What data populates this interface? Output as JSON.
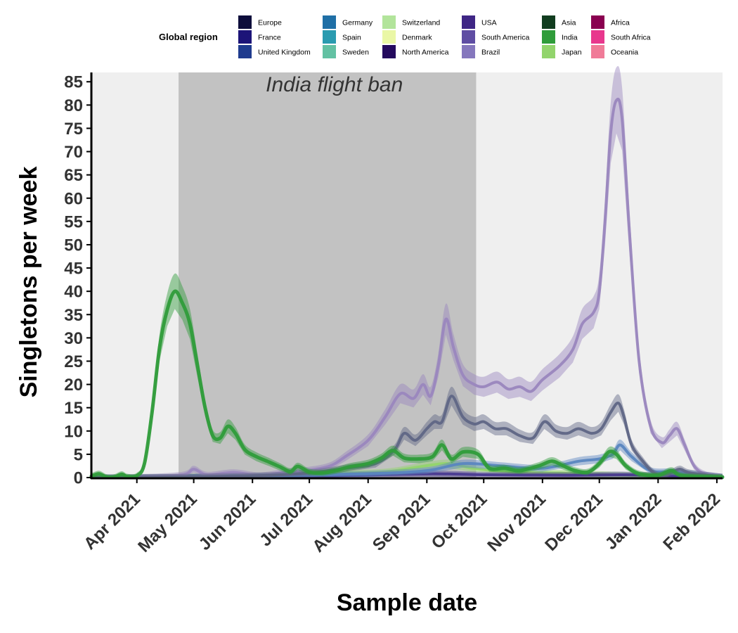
{
  "chart_data": {
    "type": "line",
    "xlabel": "Sample date",
    "ylabel": "Singletons per week",
    "xlim": [
      "2021-03-08",
      "2022-02-04"
    ],
    "ylim": [
      0,
      87
    ],
    "x_ticks": [
      {
        "date": "2021-04-01",
        "label": "Apr 2021"
      },
      {
        "date": "2021-05-01",
        "label": "May 2021"
      },
      {
        "date": "2021-06-01",
        "label": "Jun 2021"
      },
      {
        "date": "2021-07-01",
        "label": "Jul 2021"
      },
      {
        "date": "2021-08-01",
        "label": "Aug 2021"
      },
      {
        "date": "2021-09-01",
        "label": "Sep 2021"
      },
      {
        "date": "2021-10-01",
        "label": "Oct 2021"
      },
      {
        "date": "2021-11-01",
        "label": "Nov 2021"
      },
      {
        "date": "2021-12-01",
        "label": "Dec 2021"
      },
      {
        "date": "2022-01-01",
        "label": "Jan 2022"
      },
      {
        "date": "2022-02-01",
        "label": "Feb 2022"
      }
    ],
    "y_ticks": [
      0,
      5,
      10,
      15,
      20,
      25,
      30,
      35,
      40,
      45,
      50,
      55,
      60,
      65,
      70,
      75,
      80,
      85
    ],
    "grid": false,
    "legend": {
      "title": "Global region",
      "position": "top",
      "entries": [
        {
          "name": "Europe",
          "color": "#0d0d3b"
        },
        {
          "name": "France",
          "color": "#1c1478"
        },
        {
          "name": "United Kingdom",
          "color": "#1f3b8e"
        },
        {
          "name": "Germany",
          "color": "#1f6fa6"
        },
        {
          "name": "Spain",
          "color": "#2a9bb0"
        },
        {
          "name": "Sweden",
          "color": "#63c1a3"
        },
        {
          "name": "Switzerland",
          "color": "#b2e49b"
        },
        {
          "name": "Denmark",
          "color": "#eaf7a6"
        },
        {
          "name": "North America",
          "color": "#240a5e"
        },
        {
          "name": "USA",
          "color": "#3f2685"
        },
        {
          "name": "South America",
          "color": "#5f4da3"
        },
        {
          "name": "Brazil",
          "color": "#8577bd"
        },
        {
          "name": "Asia",
          "color": "#113d1f"
        },
        {
          "name": "India",
          "color": "#2f9c3a"
        },
        {
          "name": "Japan",
          "color": "#92d46c"
        },
        {
          "name": "Africa",
          "color": "#8a0050"
        },
        {
          "name": "South Africa",
          "color": "#e8378d"
        },
        {
          "name": "Oceania",
          "color": "#f07b98"
        }
      ]
    },
    "shaded_regions": [
      {
        "label": "India flight ban",
        "start": "2021-04-23",
        "end": "2021-09-27"
      }
    ],
    "series": [
      {
        "name": "Brazil",
        "color": "#9a86be",
        "points": [
          [
            "2021-03-08",
            0.1
          ],
          [
            "2021-04-01",
            0.1
          ],
          [
            "2021-04-25",
            0.6
          ],
          [
            "2021-05-01",
            1.8
          ],
          [
            "2021-05-08",
            0.6
          ],
          [
            "2021-05-22",
            1.1
          ],
          [
            "2021-06-05",
            0.5
          ],
          [
            "2021-06-19",
            1.2
          ],
          [
            "2021-07-01",
            1.6
          ],
          [
            "2021-07-12",
            2.5
          ],
          [
            "2021-07-20",
            4.5
          ],
          [
            "2021-08-01",
            8
          ],
          [
            "2021-08-10",
            13
          ],
          [
            "2021-08-18",
            18
          ],
          [
            "2021-08-25",
            17
          ],
          [
            "2021-08-30",
            20
          ],
          [
            "2021-09-03",
            17.5
          ],
          [
            "2021-09-07",
            24
          ],
          [
            "2021-09-11",
            34
          ],
          [
            "2021-09-15",
            28
          ],
          [
            "2021-09-20",
            22
          ],
          [
            "2021-09-26",
            20
          ],
          [
            "2021-10-01",
            19.5
          ],
          [
            "2021-10-08",
            20.5
          ],
          [
            "2021-10-14",
            19
          ],
          [
            "2021-10-20",
            19.5
          ],
          [
            "2021-10-26",
            18.5
          ],
          [
            "2021-11-01",
            21
          ],
          [
            "2021-11-10",
            24
          ],
          [
            "2021-11-17",
            27.5
          ],
          [
            "2021-11-22",
            33
          ],
          [
            "2021-11-28",
            35.5
          ],
          [
            "2021-12-01",
            40
          ],
          [
            "2021-12-04",
            55
          ],
          [
            "2021-12-07",
            74
          ],
          [
            "2021-12-10",
            81
          ],
          [
            "2021-12-13",
            77
          ],
          [
            "2021-12-17",
            52
          ],
          [
            "2021-12-22",
            25
          ],
          [
            "2021-12-28",
            11
          ],
          [
            "2022-01-03",
            7.5
          ],
          [
            "2022-01-07",
            9
          ],
          [
            "2022-01-11",
            10.5
          ],
          [
            "2022-01-15",
            7
          ],
          [
            "2022-01-20",
            2.5
          ],
          [
            "2022-01-26",
            0.7
          ],
          [
            "2022-02-04",
            0.2
          ]
        ]
      },
      {
        "name": "Europe",
        "color": "#5f6685",
        "points": [
          [
            "2021-03-08",
            0
          ],
          [
            "2021-05-01",
            0.2
          ],
          [
            "2021-06-10",
            0.5
          ],
          [
            "2021-07-01",
            1
          ],
          [
            "2021-07-20",
            2
          ],
          [
            "2021-08-05",
            3
          ],
          [
            "2021-08-15",
            6
          ],
          [
            "2021-08-20",
            9.5
          ],
          [
            "2021-08-26",
            8
          ],
          [
            "2021-09-01",
            10.5
          ],
          [
            "2021-09-05",
            12
          ],
          [
            "2021-09-09",
            12
          ],
          [
            "2021-09-14",
            17.5
          ],
          [
            "2021-09-20",
            13
          ],
          [
            "2021-09-26",
            11.5
          ],
          [
            "2021-10-01",
            12
          ],
          [
            "2021-10-07",
            10.5
          ],
          [
            "2021-10-13",
            10.5
          ],
          [
            "2021-10-20",
            9
          ],
          [
            "2021-10-27",
            8.5
          ],
          [
            "2021-11-02",
            12
          ],
          [
            "2021-11-08",
            10
          ],
          [
            "2021-11-14",
            9.5
          ],
          [
            "2021-11-20",
            10.5
          ],
          [
            "2021-11-27",
            9.5
          ],
          [
            "2021-12-02",
            10.5
          ],
          [
            "2021-12-07",
            14
          ],
          [
            "2021-12-11",
            16
          ],
          [
            "2021-12-14",
            13
          ],
          [
            "2021-12-18",
            7
          ],
          [
            "2021-12-24",
            3.5
          ],
          [
            "2021-12-30",
            1
          ],
          [
            "2022-01-05",
            0.5
          ],
          [
            "2022-01-12",
            1.8
          ],
          [
            "2022-01-18",
            1
          ],
          [
            "2022-02-04",
            0.2
          ]
        ]
      },
      {
        "name": "India",
        "color": "#2f9c3a",
        "points": [
          [
            "2021-03-08",
            0.3
          ],
          [
            "2021-03-12",
            0.8
          ],
          [
            "2021-03-16",
            0.1
          ],
          [
            "2021-03-20",
            0.1
          ],
          [
            "2021-03-24",
            0.7
          ],
          [
            "2021-03-27",
            0.2
          ],
          [
            "2021-04-01",
            0.4
          ],
          [
            "2021-04-05",
            3
          ],
          [
            "2021-04-09",
            14
          ],
          [
            "2021-04-13",
            28
          ],
          [
            "2021-04-17",
            36
          ],
          [
            "2021-04-21",
            40
          ],
          [
            "2021-04-25",
            37.5
          ],
          [
            "2021-04-29",
            33
          ],
          [
            "2021-05-03",
            24
          ],
          [
            "2021-05-07",
            15
          ],
          [
            "2021-05-11",
            9
          ],
          [
            "2021-05-15",
            8.5
          ],
          [
            "2021-05-19",
            11
          ],
          [
            "2021-05-23",
            9.5
          ],
          [
            "2021-05-28",
            6
          ],
          [
            "2021-06-03",
            4.5
          ],
          [
            "2021-06-10",
            3.3
          ],
          [
            "2021-06-16",
            2.2
          ],
          [
            "2021-06-21",
            1.3
          ],
          [
            "2021-06-25",
            2.4
          ],
          [
            "2021-07-01",
            1.2
          ],
          [
            "2021-07-08",
            1
          ],
          [
            "2021-07-15",
            1.5
          ],
          [
            "2021-07-22",
            2.3
          ],
          [
            "2021-08-01",
            3
          ],
          [
            "2021-08-08",
            4.2
          ],
          [
            "2021-08-14",
            5.8
          ],
          [
            "2021-08-20",
            4.2
          ],
          [
            "2021-08-28",
            4
          ],
          [
            "2021-09-04",
            4.5
          ],
          [
            "2021-09-09",
            7
          ],
          [
            "2021-09-14",
            4
          ],
          [
            "2021-09-20",
            5.5
          ],
          [
            "2021-09-28",
            5
          ],
          [
            "2021-10-04",
            2
          ],
          [
            "2021-10-12",
            2
          ],
          [
            "2021-10-20",
            1.5
          ],
          [
            "2021-10-30",
            2.5
          ],
          [
            "2021-11-06",
            3.5
          ],
          [
            "2021-11-12",
            2.5
          ],
          [
            "2021-11-18",
            1.5
          ],
          [
            "2021-11-25",
            1.2
          ],
          [
            "2021-12-01",
            3
          ],
          [
            "2021-12-06",
            5.5
          ],
          [
            "2021-12-10",
            5
          ],
          [
            "2021-12-15",
            2.5
          ],
          [
            "2021-12-22",
            0.8
          ],
          [
            "2022-01-01",
            0.5
          ],
          [
            "2022-01-08",
            1.5
          ],
          [
            "2022-01-14",
            0.4
          ],
          [
            "2022-02-04",
            0.1
          ]
        ]
      },
      {
        "name": "Japan",
        "color": "#92d46c",
        "points": [
          [
            "2021-03-08",
            0
          ],
          [
            "2021-06-25",
            0.5
          ],
          [
            "2021-07-15",
            1
          ],
          [
            "2021-08-10",
            1.2
          ],
          [
            "2021-09-10",
            3
          ],
          [
            "2021-09-25",
            2
          ],
          [
            "2021-10-15",
            1.2
          ],
          [
            "2021-11-10",
            1
          ],
          [
            "2021-12-10",
            0.6
          ],
          [
            "2022-01-10",
            0.3
          ],
          [
            "2022-02-04",
            0
          ]
        ]
      },
      {
        "name": "United Kingdom",
        "color": "#5a86c0",
        "points": [
          [
            "2021-03-08",
            0
          ],
          [
            "2021-06-01",
            0.3
          ],
          [
            "2021-08-01",
            0.8
          ],
          [
            "2021-09-01",
            1.5
          ],
          [
            "2021-09-20",
            3
          ],
          [
            "2021-10-10",
            2.5
          ],
          [
            "2021-11-01",
            2
          ],
          [
            "2021-11-20",
            3.5
          ],
          [
            "2021-12-01",
            4
          ],
          [
            "2021-12-08",
            5
          ],
          [
            "2021-12-12",
            7
          ],
          [
            "2021-12-18",
            4.5
          ],
          [
            "2021-12-28",
            1.5
          ],
          [
            "2022-01-10",
            1.2
          ],
          [
            "2022-02-04",
            0.2
          ]
        ]
      },
      {
        "name": "USA",
        "color": "#4a3a90",
        "points": [
          [
            "2021-03-08",
            0
          ],
          [
            "2021-07-01",
            0.3
          ],
          [
            "2021-09-01",
            0.8
          ],
          [
            "2021-10-01",
            0.6
          ],
          [
            "2021-11-15",
            0.5
          ],
          [
            "2021-12-15",
            0.6
          ],
          [
            "2022-01-15",
            0.3
          ],
          [
            "2022-02-04",
            0
          ]
        ]
      }
    ]
  }
}
